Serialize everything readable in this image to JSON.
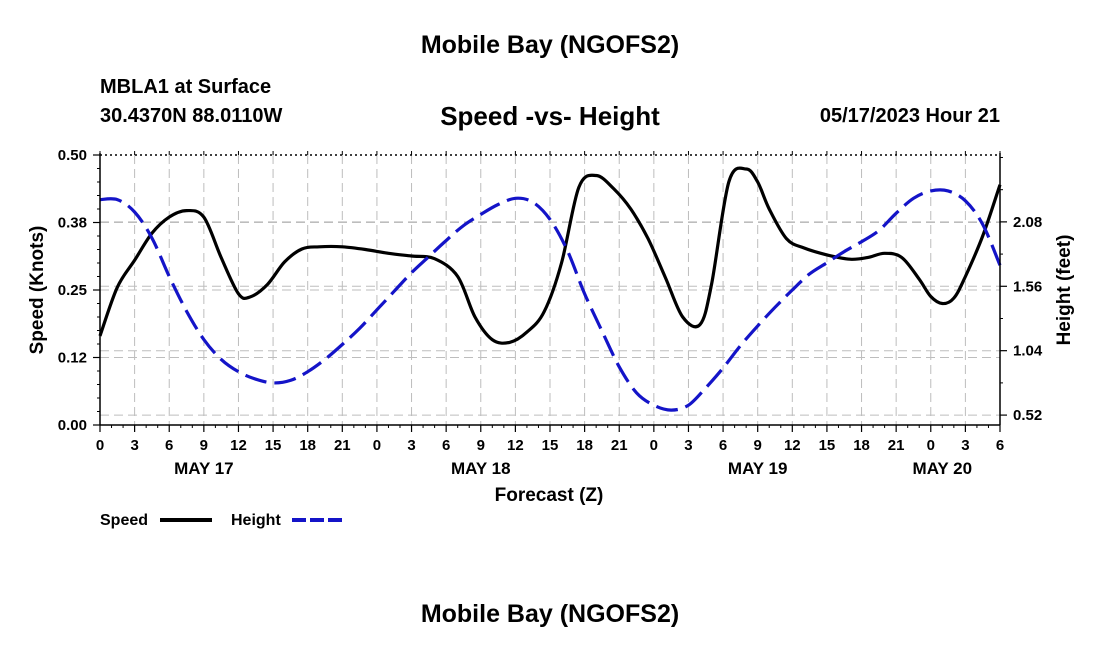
{
  "page": {
    "title": "Mobile Bay (NGOFS2)",
    "footer_title": "Mobile Bay (NGOFS2)"
  },
  "chart_data": {
    "type": "line",
    "title": "Speed -vs- Height",
    "station": "MBLA1 at Surface",
    "coords": "30.4370N  88.0110W",
    "datetime": "05/17/2023 Hour 21",
    "xlabel": "Forecast (Z)",
    "ylabel_left": "Speed (Knots)",
    "ylabel_right": "Height (feet)",
    "x_range_hours": [
      0,
      78
    ],
    "x_ticks": [
      "0",
      "3",
      "6",
      "9",
      "12",
      "15",
      "18",
      "21",
      "0",
      "3",
      "6",
      "9",
      "12",
      "15",
      "18",
      "21",
      "0",
      "3",
      "6",
      "9",
      "12",
      "15",
      "18",
      "21",
      "0",
      "3",
      "6"
    ],
    "dates": [
      {
        "label": "MAY 17",
        "hour": 9
      },
      {
        "label": "MAY 18",
        "hour": 33
      },
      {
        "label": "MAY 19",
        "hour": 57
      },
      {
        "label": "MAY 20",
        "hour": 73
      }
    ],
    "y_left": {
      "range": [
        0,
        0.5
      ],
      "ticks": [
        0.0,
        0.125,
        0.25,
        0.375,
        0.5
      ],
      "tick_labels": [
        "0.00",
        "0.12",
        "0.25",
        "0.38",
        "0.50"
      ]
    },
    "y_right": {
      "range": [
        0.44,
        2.62
      ],
      "ticks": [
        0.52,
        1.04,
        1.56,
        2.08
      ],
      "tick_labels": [
        "0.52",
        "1.04",
        "1.56",
        "2.08"
      ]
    },
    "grid": true,
    "legend": [
      {
        "name": "Speed",
        "color": "#000000",
        "style": "solid"
      },
      {
        "name": "Height",
        "color": "#1414c8",
        "style": "dashed"
      }
    ],
    "series": [
      {
        "name": "Speed",
        "axis": "left",
        "color": "#000000",
        "x": [
          0,
          1.5,
          3,
          4.5,
          6,
          7.5,
          9,
          10.5,
          12,
          13,
          14.5,
          16,
          17.5,
          19,
          21,
          23,
          25,
          27,
          29,
          31,
          32.5,
          34,
          35.5,
          37,
          38.5,
          40,
          41.5,
          43,
          44.5,
          46,
          47.5,
          49,
          50.5,
          52,
          53,
          54.5,
          56,
          57,
          58,
          59.5,
          61,
          63,
          65,
          66.5,
          68,
          69.5,
          71,
          72,
          73,
          74,
          75,
          76.5,
          78
        ],
        "values": [
          0.165,
          0.255,
          0.305,
          0.355,
          0.385,
          0.397,
          0.385,
          0.31,
          0.243,
          0.237,
          0.26,
          0.302,
          0.326,
          0.33,
          0.33,
          0.325,
          0.318,
          0.313,
          0.308,
          0.275,
          0.2,
          0.158,
          0.153,
          0.172,
          0.21,
          0.3,
          0.44,
          0.462,
          0.438,
          0.4,
          0.345,
          0.273,
          0.2,
          0.186,
          0.26,
          0.45,
          0.474,
          0.45,
          0.4,
          0.345,
          0.328,
          0.315,
          0.307,
          0.31,
          0.318,
          0.31,
          0.27,
          0.238,
          0.225,
          0.235,
          0.275,
          0.35,
          0.445
        ]
      },
      {
        "name": "Height",
        "axis": "right",
        "color": "#1414c8",
        "x": [
          0,
          1.5,
          3,
          4.5,
          6,
          7.5,
          9,
          10.5,
          12,
          13.5,
          15,
          16.5,
          18,
          19.5,
          21,
          22.5,
          24,
          25.5,
          27,
          28.5,
          30,
          31.5,
          33,
          34.5,
          36,
          37.5,
          39,
          40.5,
          42,
          43.5,
          45,
          46.5,
          48,
          49.5,
          51,
          52.5,
          54,
          55.5,
          57,
          58.5,
          60,
          61.5,
          63,
          64.5,
          66,
          67.5,
          69,
          70.5,
          72,
          73.5,
          75,
          76.5,
          78
        ],
        "values": [
          2.26,
          2.26,
          2.16,
          1.95,
          1.64,
          1.36,
          1.13,
          0.97,
          0.87,
          0.81,
          0.78,
          0.8,
          0.87,
          0.97,
          1.09,
          1.22,
          1.37,
          1.52,
          1.67,
          1.8,
          1.93,
          2.05,
          2.14,
          2.22,
          2.27,
          2.24,
          2.1,
          1.85,
          1.5,
          1.2,
          0.91,
          0.7,
          0.6,
          0.56,
          0.6,
          0.74,
          0.9,
          1.08,
          1.24,
          1.39,
          1.53,
          1.66,
          1.75,
          1.84,
          1.92,
          2.01,
          2.15,
          2.27,
          2.33,
          2.33,
          2.25,
          2.06,
          1.73
        ]
      }
    ]
  }
}
